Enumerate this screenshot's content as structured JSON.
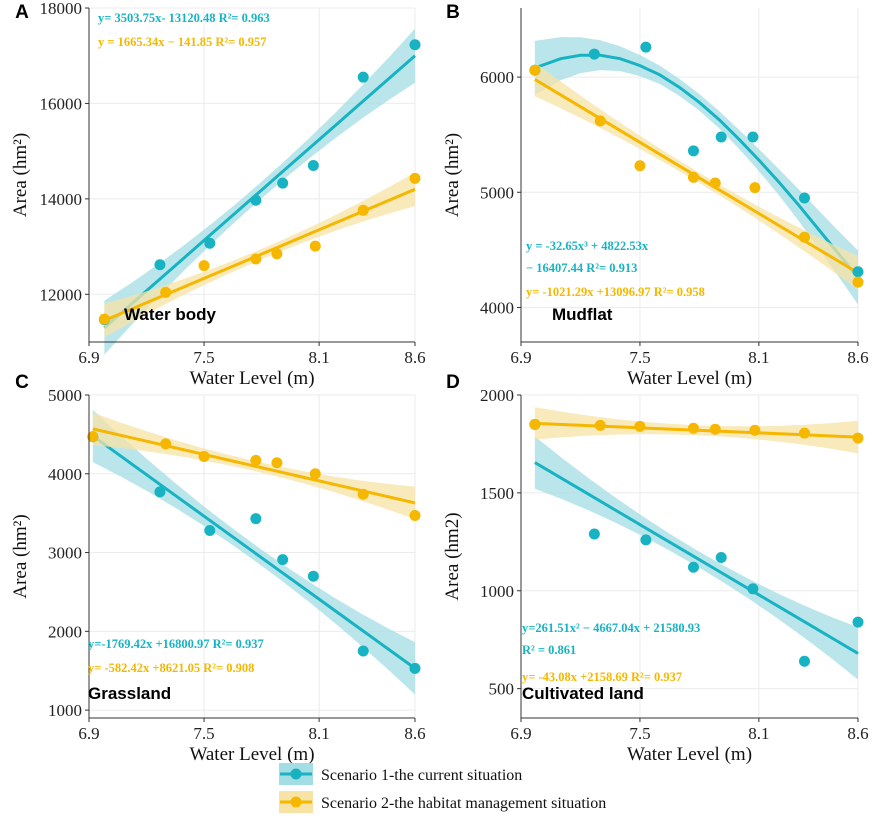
{
  "colors": {
    "s1": "#17B3C3",
    "s2": "#F5B700",
    "band1": "#A3DEE4",
    "band2": "#F7E3A6",
    "grid": "#EBEBEB",
    "panelbg": "#FFFFFF",
    "axis": "#333333"
  },
  "legend": {
    "s1_label": "Scenario 1-the current situation",
    "s2_label": "Scenario 2-the habitat management situation"
  },
  "chart_data": [
    {
      "panel": "A",
      "name": "Water body",
      "type": "scatter",
      "xlabel": "Water Level (m)",
      "ylabel": "Area (hm²)",
      "xlim": [
        6.9,
        8.6
      ],
      "ylim": [
        11000,
        18000
      ],
      "xticks": [
        "6.9",
        "7.5",
        "8.1",
        "8.6"
      ],
      "xtick_values": [
        6.9,
        7.5,
        8.1,
        8.6
      ],
      "yticks": [
        "12000",
        "14000",
        "16000",
        "18000"
      ],
      "ytick_values": [
        12000,
        14000,
        16000,
        18000
      ],
      "series": [
        {
          "name": "Scenario 1-the current situation",
          "x": [
            6.98,
            7.27,
            7.53,
            7.77,
            7.91,
            8.07,
            8.33,
            8.6
          ],
          "y": [
            11470,
            12620,
            13070,
            13970,
            14330,
            14700,
            16550,
            17230
          ],
          "fit": {
            "type": "linear",
            "start": [
              6.98,
              11300
            ],
            "end": [
              8.6,
              17000
            ]
          },
          "equation": [
            "y= 3503.75x- 13120.48   R²= 0.963"
          ]
        },
        {
          "name": "Scenario 2-the habitat management situation",
          "x": [
            6.98,
            7.3,
            7.5,
            7.77,
            7.88,
            8.08,
            8.33,
            8.6
          ],
          "y": [
            11480,
            12040,
            12600,
            12740,
            12850,
            13010,
            13760,
            14430
          ],
          "fit": {
            "type": "linear",
            "start": [
              6.98,
              11450
            ],
            "end": [
              8.6,
              14200
            ]
          },
          "equation": [
            "y = 1665.34x − 141.85   R²= 0.957"
          ]
        }
      ]
    },
    {
      "panel": "B",
      "name": "Mudflat",
      "type": "scatter",
      "xlabel": "Water Level (m)",
      "ylabel": "Area (hm²)",
      "xlim": [
        6.9,
        8.6
      ],
      "ylim": [
        3700,
        6600
      ],
      "xticks": [
        "6.9",
        "7.5",
        "8.1",
        "8.6"
      ],
      "xtick_values": [
        6.9,
        7.5,
        8.1,
        8.6
      ],
      "yticks": [
        "4000",
        "5000",
        "6000"
      ],
      "ytick_values": [
        4000,
        5000,
        6000
      ],
      "series": [
        {
          "name": "Scenario 1-the current situation",
          "x": [
            6.97,
            7.27,
            7.53,
            7.77,
            7.91,
            8.07,
            8.33,
            8.6
          ],
          "y": [
            6060,
            6200,
            6260,
            5360,
            5480,
            5480,
            4950,
            4310
          ],
          "fit": {
            "type": "cubic",
            "x": [
              6.97,
              7.1,
              7.2,
              7.3,
              7.4,
              7.5,
              7.6,
              7.7,
              7.8,
              7.9,
              8.0,
              8.1,
              8.2,
              8.3,
              8.4,
              8.5,
              8.6
            ],
            "y": [
              6080,
              6160,
              6190,
              6190,
              6160,
              6100,
              6020,
              5910,
              5780,
              5630,
              5460,
              5280,
              5090,
              4890,
              4680,
              4470,
              4260
            ]
          },
          "equation": [
            "y = -32.65x³ + 4822.53x",
            "− 16407.44 R²= 0.913"
          ]
        },
        {
          "name": "Scenario 2-the habitat management situation",
          "x": [
            6.97,
            7.3,
            7.5,
            7.77,
            7.88,
            8.08,
            8.33,
            8.6
          ],
          "y": [
            6060,
            5620,
            5230,
            5130,
            5080,
            5040,
            4610,
            4220
          ],
          "fit": {
            "type": "linear",
            "start": [
              6.97,
              5980
            ],
            "end": [
              8.6,
              4300
            ]
          },
          "equation": [
            "y= -1021.29x +13096.97 R²= 0.958"
          ]
        }
      ]
    },
    {
      "panel": "C",
      "name": "Grassland",
      "type": "scatter",
      "xlabel": "Water Level (m)",
      "ylabel": "Area (hm²)",
      "xlim": [
        6.9,
        8.6
      ],
      "ylim": [
        900,
        5000
      ],
      "xticks": [
        "6.9",
        "7.5",
        "8.1",
        "8.6"
      ],
      "xtick_values": [
        6.9,
        7.5,
        8.1,
        8.6
      ],
      "yticks": [
        "1000",
        "2000",
        "3000",
        "4000",
        "5000"
      ],
      "ytick_values": [
        1000,
        2000,
        3000,
        4000,
        5000
      ],
      "series": [
        {
          "name": "Scenario 1-the current situation",
          "x": [
            6.92,
            7.27,
            7.53,
            7.77,
            7.91,
            8.07,
            8.33,
            8.6
          ],
          "y": [
            4470,
            3770,
            3280,
            3430,
            2910,
            2700,
            1750,
            1530
          ],
          "fit": {
            "type": "linear",
            "start": [
              6.92,
              4480
            ],
            "end": [
              8.6,
              1530
            ]
          },
          "equation": [
            "y=-1769.42x +16800.97 R²= 0.937"
          ]
        },
        {
          "name": "Scenario 2-the habitat management situation",
          "x": [
            6.92,
            7.3,
            7.5,
            7.77,
            7.88,
            8.08,
            8.33,
            8.6
          ],
          "y": [
            4470,
            4380,
            4220,
            4170,
            4140,
            4000,
            3740,
            3470
          ],
          "fit": {
            "type": "linear",
            "start": [
              6.92,
              4570
            ],
            "end": [
              8.6,
              3630
            ]
          },
          "equation": [
            "y= -582.42x +8621.05  R²= 0.908"
          ]
        }
      ]
    },
    {
      "panel": "D",
      "name": "Cultivated land",
      "type": "scatter",
      "xlabel": "Water Level (m)",
      "ylabel": "Area (hm2)",
      "xlim": [
        6.9,
        8.6
      ],
      "ylim": [
        350,
        2000
      ],
      "xticks": [
        "6.9",
        "7.5",
        "8.1",
        "8.6"
      ],
      "xtick_values": [
        6.9,
        7.5,
        8.1,
        8.6
      ],
      "yticks": [
        "500",
        "1000",
        "1500",
        "2000"
      ],
      "ytick_values": [
        500,
        1000,
        1500,
        2000
      ],
      "series": [
        {
          "name": "Scenario 1-the current situation",
          "x": [
            6.97,
            7.27,
            7.53,
            7.77,
            7.91,
            8.07,
            8.33,
            8.6
          ],
          "y": [
            1850,
            1290,
            1260,
            1120,
            1170,
            1010,
            640,
            840
          ],
          "fit": {
            "type": "linear",
            "start": [
              6.97,
              1655
            ],
            "end": [
              8.6,
              680
            ]
          },
          "equation": [
            "y=261.51x² − 4667.04x + 21580.93",
            "R² = 0.861"
          ]
        },
        {
          "name": "Scenario 2-the habitat management situation",
          "x": [
            6.97,
            7.3,
            7.5,
            7.77,
            7.88,
            8.08,
            8.33,
            8.6
          ],
          "y": [
            1850,
            1845,
            1840,
            1830,
            1825,
            1820,
            1805,
            1780
          ],
          "fit": {
            "type": "linear",
            "start": [
              6.97,
              1855
            ],
            "end": [
              8.6,
              1785
            ]
          },
          "equation": [
            "y= -43.08x +2158.69  R²= 0.937"
          ]
        }
      ]
    }
  ]
}
